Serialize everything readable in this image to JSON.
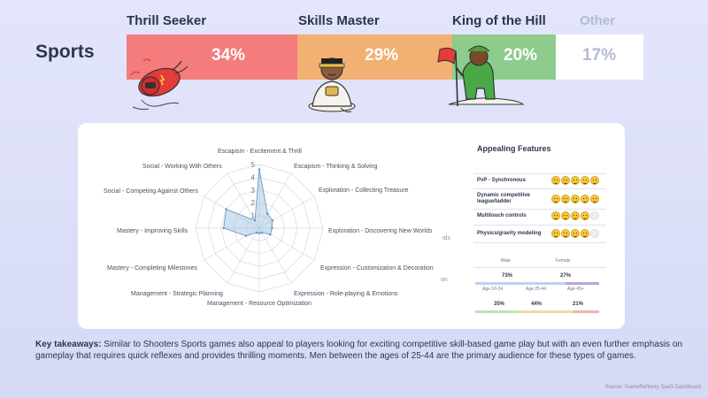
{
  "genre": "Sports",
  "segments": [
    {
      "name": "Thrill Seeker",
      "pct": "34%",
      "color": "#f47c7c"
    },
    {
      "name": "Skills Master",
      "pct": "29%",
      "color": "#f2b073"
    },
    {
      "name": "King of the Hill",
      "pct": "20%",
      "color": "#8dcc8d"
    },
    {
      "name": "Other",
      "pct": "17%",
      "color": "#ffffff"
    }
  ],
  "radar": {
    "ticks": [
      "1",
      "2",
      "3",
      "4",
      "5"
    ],
    "axes": [
      {
        "label": "Escapism - Excitement & Thrill",
        "value": 4.6
      },
      {
        "label": "Escapism - Thinking & Solving",
        "value": 1.3
      },
      {
        "label": "Exploration - Collecting Treasure",
        "value": 1.2
      },
      {
        "label": "Exploration - Discovering New Worlds",
        "value": 1.0
      },
      {
        "label": "Expression - Customization & Decoration",
        "value": 1.0
      },
      {
        "label": "Expression - Role-playing & Emotions",
        "value": 0.4
      },
      {
        "label": "Management - Resource Optimization",
        "value": 0.4
      },
      {
        "label": "Management - Strategic Planning",
        "value": 0.4
      },
      {
        "label": "Mastery - Completing Milestones",
        "value": 1.2
      },
      {
        "label": "Mastery - Improving Skills",
        "value": 2.8
      },
      {
        "label": "Social - Competing Against Others",
        "value": 3.0
      },
      {
        "label": "Social - Working With Others",
        "value": 0.7
      }
    ],
    "cut_text_1": "ids",
    "cut_text_2": "on"
  },
  "features": {
    "title": "Appealing Features",
    "rows": [
      {
        "label": "PvP - Synchronous",
        "rating": 5,
        "max": 5
      },
      {
        "label": "Dynamic competitive league/ladder",
        "rating": 5,
        "max": 5
      },
      {
        "label": "Multitouch controls",
        "rating": 4,
        "max": 5
      },
      {
        "label": "Physics/gravity modeling",
        "rating": 4,
        "max": 5
      }
    ]
  },
  "demographics": {
    "male_label": "Male",
    "female_label": "Female",
    "male_pct": "73%",
    "female_pct": "27%",
    "male_color": "#b9d4f3",
    "female_color": "#b7a6d8",
    "age_labels": [
      "Age 16-24",
      "Age 25-44",
      "Age 45+"
    ],
    "age_pcts": [
      "35%",
      "44%",
      "21%"
    ],
    "age_colors": [
      "#bde5b3",
      "#f3dca3",
      "#efb3b3"
    ]
  },
  "takeaway": {
    "lead": "Key takeaways:",
    "text": " Similar to Shooters Sports games also appeal to players looking for exciting competitive skill-based game play but with an even further emphasis on gameplay that requires quick reflexes and provides thrilling moments. Men between the ages of 25-44 are the primary audience for these types of games."
  },
  "source": "Source: GameRefinery SaaS Dashboard"
}
